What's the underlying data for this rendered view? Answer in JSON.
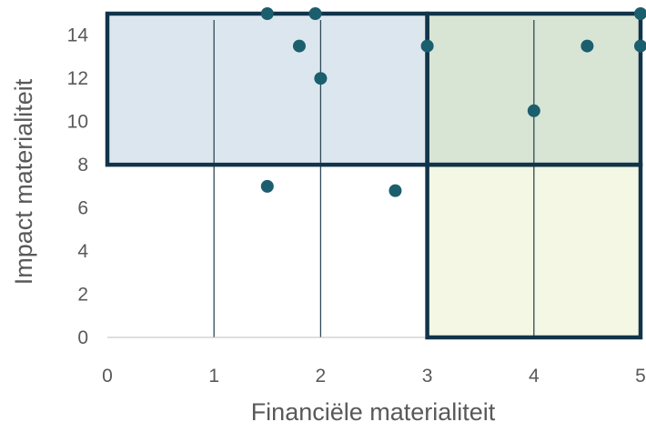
{
  "chart_data": {
    "type": "scatter",
    "title": "",
    "xlabel": "Financiële materialiteit",
    "ylabel": "Impact materialiteit",
    "xlim": [
      0,
      5
    ],
    "ylim": [
      0,
      15
    ],
    "x_ticks": [
      0,
      1,
      2,
      3,
      4,
      5
    ],
    "y_ticks": [
      0,
      2,
      4,
      6,
      8,
      10,
      12,
      14
    ],
    "grid": "vertical",
    "legend": "none",
    "points": [
      {
        "x": 1.5,
        "y": 15
      },
      {
        "x": 1.95,
        "y": 15
      },
      {
        "x": 1.8,
        "y": 13.5
      },
      {
        "x": 2.0,
        "y": 12
      },
      {
        "x": 3.0,
        "y": 13.5
      },
      {
        "x": 4.5,
        "y": 13.5
      },
      {
        "x": 5.0,
        "y": 15
      },
      {
        "x": 5.0,
        "y": 13.5
      },
      {
        "x": 4.0,
        "y": 10.5
      },
      {
        "x": 1.5,
        "y": 7
      },
      {
        "x": 2.7,
        "y": 6.8
      }
    ],
    "regions": [
      {
        "x": [
          0,
          3
        ],
        "y": [
          8,
          15
        ],
        "fill": "#dce6ee"
      },
      {
        "x": [
          3,
          5
        ],
        "y": [
          8,
          15
        ],
        "fill": "#d8e4d4"
      },
      {
        "x": [
          3,
          5
        ],
        "y": [
          0,
          8
        ],
        "fill": "#f3f7e4"
      }
    ],
    "colors": {
      "point": "#1b5e6e",
      "frame": "#11344a",
      "axis_text": "#595959",
      "grid": "#2f4a5a"
    }
  }
}
